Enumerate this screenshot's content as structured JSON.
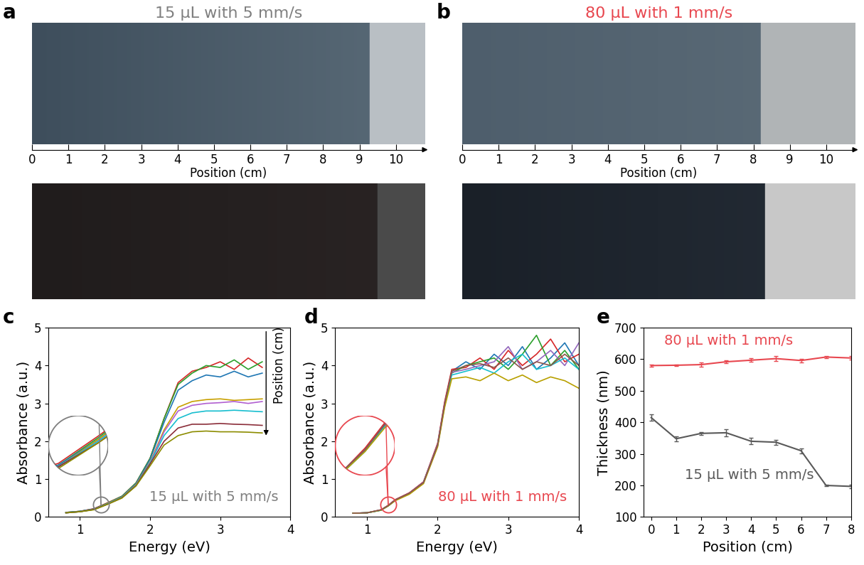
{
  "chart_data": [
    {
      "panel": "a",
      "type": "image",
      "title": "15 µL with 5 mm/s",
      "color": "#7f7f7f",
      "xlabel": "Position (cm)",
      "xlim": [
        0,
        10.8
      ],
      "xticks": [
        0,
        1,
        2,
        3,
        4,
        5,
        6,
        7,
        8,
        9,
        10
      ]
    },
    {
      "panel": "b",
      "type": "image",
      "title": "80 µL with 1 mm/s",
      "color": "#e8474f",
      "xlabel": "Position (cm)",
      "xlim": [
        0,
        10.8
      ],
      "xticks": [
        0,
        1,
        2,
        3,
        4,
        5,
        6,
        7,
        8,
        9,
        10
      ]
    },
    {
      "panel": "c",
      "type": "line",
      "xlabel": "Energy (eV)",
      "ylabel": "Absorbance (a.u.)",
      "annotations": [
        "15 µL with 5 mm/s",
        "Position (cm)"
      ],
      "color": "#7f7f7f",
      "xlim": [
        0.55,
        4
      ],
      "xticks": [
        1,
        2,
        3,
        4
      ],
      "ylim": [
        0,
        5
      ],
      "yticks": [
        0,
        1,
        2,
        3,
        4,
        5
      ],
      "inset": {
        "xlim": [
          1.15,
          1.45
        ],
        "ylim": [
          0.15,
          0.5
        ]
      },
      "x": [
        0.8,
        1.0,
        1.2,
        1.4,
        1.6,
        1.8,
        2.0,
        2.2,
        2.4,
        2.6,
        2.8,
        3.0,
        3.2,
        3.4,
        3.6
      ],
      "series": [
        {
          "color": "#d62728",
          "values": [
            0.12,
            0.15,
            0.22,
            0.38,
            0.55,
            0.9,
            1.55,
            2.6,
            3.55,
            3.85,
            3.95,
            4.1,
            3.9,
            4.2,
            3.95
          ]
        },
        {
          "color": "#2ca02c",
          "values": [
            0.12,
            0.15,
            0.21,
            0.37,
            0.55,
            0.9,
            1.55,
            2.6,
            3.5,
            3.8,
            4.0,
            3.95,
            4.15,
            3.9,
            4.1
          ]
        },
        {
          "color": "#1f77b4",
          "values": [
            0.12,
            0.15,
            0.21,
            0.36,
            0.54,
            0.88,
            1.52,
            2.5,
            3.35,
            3.6,
            3.75,
            3.7,
            3.85,
            3.7,
            3.8
          ]
        },
        {
          "color": "#c8a000",
          "values": [
            0.11,
            0.14,
            0.2,
            0.36,
            0.53,
            0.86,
            1.45,
            2.3,
            2.9,
            3.05,
            3.1,
            3.12,
            3.08,
            3.1,
            3.12
          ]
        },
        {
          "color": "#b15fd0",
          "values": [
            0.11,
            0.14,
            0.2,
            0.35,
            0.52,
            0.85,
            1.43,
            2.25,
            2.8,
            2.95,
            3.0,
            3.02,
            3.05,
            3.0,
            3.05
          ]
        },
        {
          "color": "#17becf",
          "values": [
            0.11,
            0.14,
            0.2,
            0.35,
            0.52,
            0.84,
            1.42,
            2.15,
            2.6,
            2.75,
            2.8,
            2.8,
            2.82,
            2.8,
            2.78
          ]
        },
        {
          "color": "#8b2e3a",
          "values": [
            0.11,
            0.14,
            0.2,
            0.34,
            0.51,
            0.83,
            1.4,
            2.0,
            2.35,
            2.45,
            2.45,
            2.47,
            2.45,
            2.44,
            2.42
          ]
        },
        {
          "color": "#8c8c00",
          "values": [
            0.11,
            0.14,
            0.19,
            0.34,
            0.5,
            0.82,
            1.35,
            1.9,
            2.15,
            2.25,
            2.27,
            2.25,
            2.25,
            2.24,
            2.22
          ]
        }
      ]
    },
    {
      "panel": "d",
      "type": "line",
      "xlabel": "Energy (eV)",
      "ylabel": "Absorbance (a.u.)",
      "annotations": [
        "80 µL with 1 mm/s"
      ],
      "color": "#e8474f",
      "xlim": [
        0.55,
        4
      ],
      "xticks": [
        1,
        2,
        3,
        4
      ],
      "ylim": [
        0,
        5
      ],
      "yticks": [
        0,
        1,
        2,
        3,
        4,
        5
      ],
      "inset": {
        "xlim": [
          1.15,
          1.45
        ],
        "ylim": [
          0.15,
          0.5
        ]
      },
      "x": [
        0.8,
        1.0,
        1.2,
        1.3,
        1.4,
        1.6,
        1.8,
        2.0,
        2.1,
        2.2,
        2.4,
        2.6,
        2.8,
        3.0,
        3.2,
        3.4,
        3.6,
        3.8,
        4.0
      ],
      "series": [
        {
          "color": "#1f77b4",
          "values": [
            0.1,
            0.11,
            0.18,
            0.3,
            0.45,
            0.63,
            0.92,
            1.9,
            3.0,
            3.85,
            4.1,
            3.9,
            4.3,
            4.0,
            4.5,
            3.9,
            4.2,
            4.6,
            4.0
          ]
        },
        {
          "color": "#d62728",
          "values": [
            0.1,
            0.11,
            0.19,
            0.31,
            0.46,
            0.64,
            0.93,
            1.95,
            3.05,
            3.9,
            3.95,
            4.2,
            3.9,
            4.4,
            4.0,
            4.3,
            4.7,
            4.1,
            4.3
          ]
        },
        {
          "color": "#2ca02c",
          "values": [
            0.1,
            0.11,
            0.18,
            0.3,
            0.44,
            0.62,
            0.91,
            1.9,
            2.95,
            3.8,
            4.0,
            4.1,
            4.2,
            3.9,
            4.3,
            4.8,
            4.0,
            4.4,
            3.9
          ]
        },
        {
          "color": "#9467bd",
          "values": [
            0.1,
            0.11,
            0.19,
            0.3,
            0.45,
            0.63,
            0.92,
            1.92,
            3.0,
            3.82,
            3.9,
            4.0,
            4.1,
            4.5,
            3.9,
            4.1,
            4.4,
            4.0,
            4.6
          ]
        },
        {
          "color": "#17becf",
          "values": [
            0.1,
            0.11,
            0.18,
            0.29,
            0.44,
            0.62,
            0.9,
            1.88,
            2.95,
            3.75,
            3.85,
            3.95,
            3.8,
            4.1,
            4.3,
            3.9,
            4.0,
            4.2,
            3.9
          ]
        },
        {
          "color": "#b8a000",
          "values": [
            0.1,
            0.11,
            0.18,
            0.29,
            0.43,
            0.6,
            0.88,
            1.85,
            2.9,
            3.65,
            3.7,
            3.6,
            3.8,
            3.6,
            3.75,
            3.55,
            3.7,
            3.6,
            3.4
          ]
        },
        {
          "color": "#8c564b",
          "values": [
            0.1,
            0.11,
            0.19,
            0.3,
            0.45,
            0.63,
            0.91,
            1.9,
            3.0,
            3.85,
            4.0,
            4.05,
            3.95,
            4.2,
            3.9,
            4.1,
            4.0,
            4.3,
            4.0
          ]
        }
      ]
    },
    {
      "panel": "e",
      "type": "line",
      "xlabel": "Position (cm)",
      "ylabel": "Thickness (nm)",
      "x": [
        0,
        1,
        2,
        3,
        4,
        5,
        6,
        7,
        8
      ],
      "xlim": [
        -0.3,
        8
      ],
      "xticks": [
        0,
        1,
        2,
        3,
        4,
        5,
        6,
        7,
        8
      ],
      "ylim": [
        100,
        700
      ],
      "yticks": [
        100,
        200,
        300,
        400,
        500,
        600,
        700
      ],
      "series": [
        {
          "name": "80 µL with 1 mm/s",
          "color": "#e8474f",
          "values": [
            580,
            581,
            583,
            592,
            597,
            602,
            596,
            607,
            604
          ],
          "errors": [
            3,
            3,
            7,
            5,
            6,
            8,
            6,
            3,
            6
          ]
        },
        {
          "name": "15 µL with 5 mm/s",
          "color": "#595959",
          "values": [
            415,
            348,
            365,
            367,
            340,
            337,
            310,
            200,
            197
          ],
          "errors": [
            10,
            8,
            5,
            12,
            10,
            8,
            8,
            3,
            5
          ]
        }
      ]
    }
  ]
}
